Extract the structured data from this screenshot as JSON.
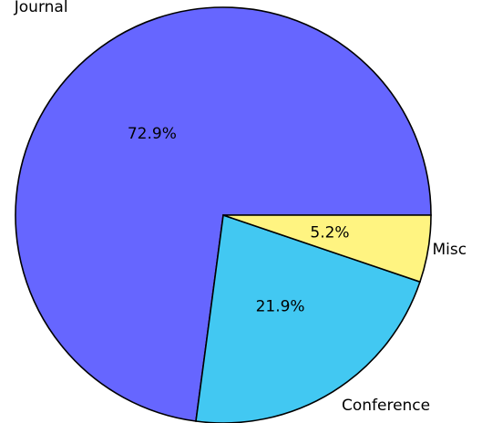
{
  "chart_data": {
    "type": "pie",
    "categories": [
      "Journal",
      "Conference",
      "Misc"
    ],
    "values": [
      72.9,
      21.9,
      5.2
    ],
    "value_labels": [
      "72.9%",
      "21.9%",
      "5.2%"
    ],
    "colors": [
      "#6666ff",
      "#42c8f2",
      "#fff481"
    ],
    "start": "three o'clock, counterclockwise",
    "title": "",
    "legend": "none"
  }
}
